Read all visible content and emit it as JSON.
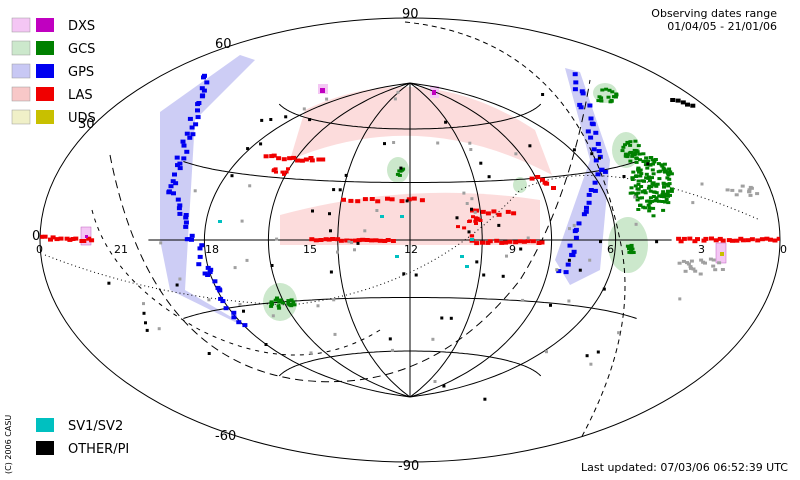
{
  "chart_data": {
    "type": "scatter",
    "projection": "aitoff-hammer",
    "header": {
      "line1": "Observing dates range",
      "line2": "01/04/05 - 21/01/06"
    },
    "footer": {
      "updated": "Last updated: 07/03/06 06:52:39 UTC",
      "copyright": "(C) 2006 CASU"
    },
    "ra_labels": [
      "0",
      "21",
      "18",
      "15",
      "12",
      "9",
      "6",
      "3",
      "0"
    ],
    "dec_labels": {
      "top": "90",
      "p60": "60",
      "p30": "30",
      "zero": "0",
      "m60": "-60",
      "bottom": "-90"
    },
    "legend": [
      {
        "name": "DXS",
        "light": "#f4c6f4",
        "dark": "#c000c0"
      },
      {
        "name": "GCS",
        "light": "#cce8cc",
        "dark": "#008000"
      },
      {
        "name": "GPS",
        "light": "#c8c8f4",
        "dark": "#0000f0"
      },
      {
        "name": "LAS",
        "light": "#f8c8c8",
        "dark": "#f00000"
      },
      {
        "name": "UDS",
        "light": "#f0f0c8",
        "dark": "#c8c000"
      }
    ],
    "legend_bottom": [
      {
        "name": "SV1/SV2",
        "color": "#00c0c0"
      },
      {
        "name": "OTHER/PI",
        "color": "#000000"
      }
    ],
    "grid": true,
    "legend_placement": "top-left"
  }
}
